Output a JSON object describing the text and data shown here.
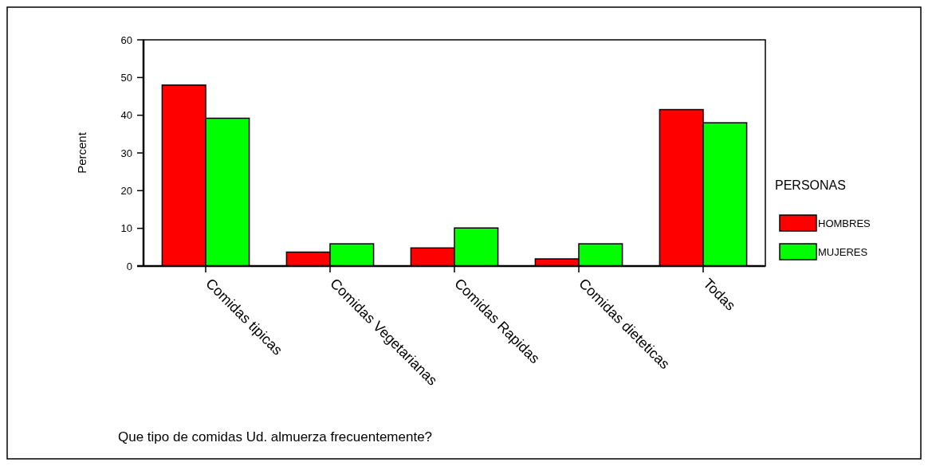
{
  "chart_data": {
    "type": "bar",
    "title": "Que tipo de comidas Ud. almuerza frecuentemente?",
    "ylabel": "Percent",
    "legend_title": "PERSONAS",
    "legend": "right",
    "categories": [
      "Comidas tipicas",
      "Comidas Vegetarianas",
      "Comidas Rapidas",
      "Comidas dieteticas",
      "Todas"
    ],
    "series": [
      {
        "name": "HOMBRES",
        "color": "#ff0000",
        "values": [
          48,
          3.7,
          4.8,
          1.9,
          41.5
        ]
      },
      {
        "name": "MUJERES",
        "color": "#00ff00",
        "values": [
          39.2,
          5.9,
          10.1,
          5.9,
          38
        ]
      }
    ],
    "ylim": [
      0,
      60
    ],
    "yticks": [
      0,
      10,
      20,
      30,
      40,
      50,
      60
    ],
    "grid": false
  }
}
